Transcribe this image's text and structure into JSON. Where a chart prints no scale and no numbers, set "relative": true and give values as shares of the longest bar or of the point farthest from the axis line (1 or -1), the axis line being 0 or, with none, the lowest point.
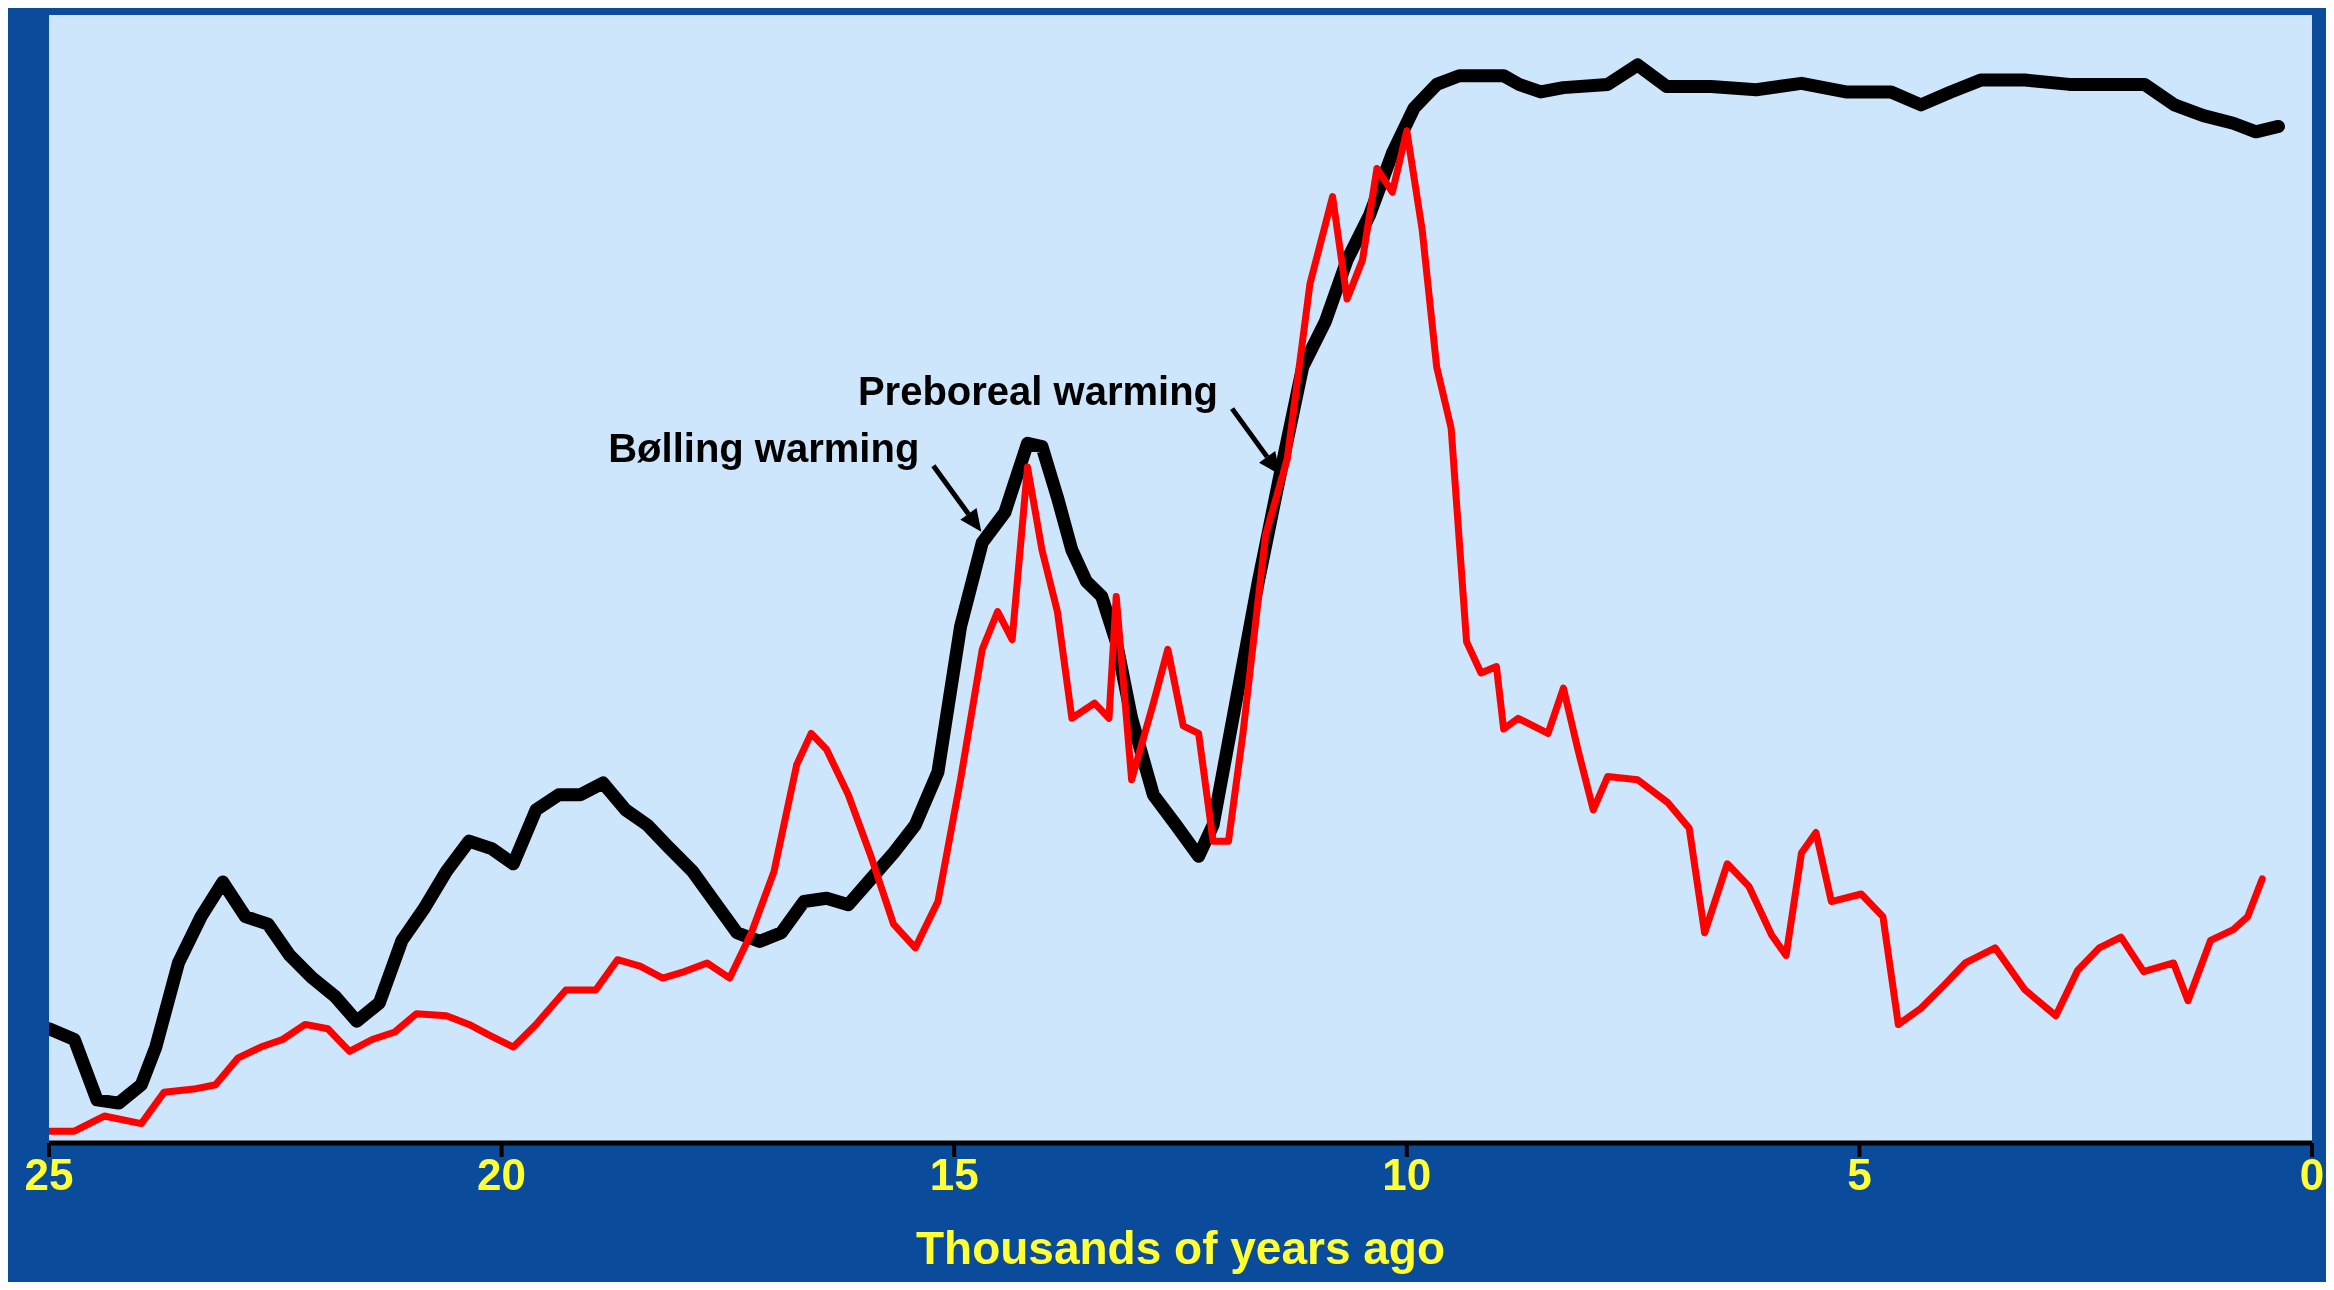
{
  "chart_data": {
    "type": "line",
    "xlabel": "Thousands of years ago",
    "relative": true,
    "xlim": [
      25,
      0
    ],
    "xticks": [
      25,
      20,
      15,
      10,
      5,
      0
    ],
    "grid": false,
    "marker": "none",
    "line_style": "solid",
    "annotations": [
      {
        "text": "Bølling warming",
        "x": 14.7,
        "y": 0.567
      },
      {
        "text": "Preboreal warming",
        "x": 11.4,
        "y": 0.62
      }
    ],
    "series": [
      {
        "color": "#000000",
        "x": [
          25.0,
          24.72,
          24.47,
          24.23,
          23.98,
          23.82,
          23.57,
          23.32,
          23.08,
          22.83,
          22.58,
          22.34,
          22.09,
          21.84,
          21.6,
          21.35,
          21.1,
          20.86,
          20.61,
          20.36,
          20.11,
          19.87,
          19.62,
          19.37,
          19.13,
          18.88,
          18.63,
          18.39,
          18.14,
          17.89,
          17.65,
          17.4,
          17.15,
          16.91,
          16.66,
          16.41,
          16.17,
          15.92,
          15.67,
          15.43,
          15.18,
          14.93,
          14.69,
          14.44,
          14.19,
          14.03,
          13.86,
          13.7,
          13.54,
          13.37,
          13.21,
          13.04,
          12.8,
          12.55,
          12.3,
          12.14,
          11.89,
          11.64,
          11.4,
          11.15,
          10.9,
          10.66,
          10.41,
          10.16,
          9.92,
          9.67,
          9.42,
          9.18,
          8.93,
          8.76,
          8.52,
          8.27,
          7.78,
          7.45,
          7.13,
          6.64,
          6.14,
          5.64,
          5.15,
          4.65,
          4.32,
          3.99,
          3.66,
          3.17,
          2.68,
          2.18,
          1.85,
          1.52,
          1.2,
          0.87,
          0.62,
          0.37
        ],
        "values": [
          0.106,
          0.096,
          0.04,
          0.037,
          0.054,
          0.089,
          0.167,
          0.21,
          0.242,
          0.21,
          0.203,
          0.174,
          0.153,
          0.136,
          0.113,
          0.13,
          0.188,
          0.217,
          0.252,
          0.28,
          0.273,
          0.259,
          0.309,
          0.323,
          0.323,
          0.334,
          0.309,
          0.295,
          0.273,
          0.252,
          0.224,
          0.195,
          0.187,
          0.195,
          0.224,
          0.227,
          0.221,
          0.245,
          0.269,
          0.295,
          0.344,
          0.479,
          0.557,
          0.585,
          0.649,
          0.646,
          0.599,
          0.55,
          0.521,
          0.507,
          0.465,
          0.394,
          0.323,
          0.295,
          0.266,
          0.295,
          0.408,
          0.521,
          0.62,
          0.72,
          0.762,
          0.819,
          0.861,
          0.918,
          0.96,
          0.982,
          0.99,
          0.99,
          0.99,
          0.982,
          0.975,
          0.979,
          0.982,
          1,
          0.98,
          0.98,
          0.977,
          0.983,
          0.975,
          0.975,
          0.963,
          0.975,
          0.986,
          0.986,
          0.982,
          0.982,
          0.982,
          0.963,
          0.953,
          0.946,
          0.938,
          0.943
        ]
      },
      {
        "color": "#ff0000",
        "x": [
          25.0,
          24.72,
          24.39,
          23.98,
          23.73,
          23.4,
          23.16,
          22.91,
          22.66,
          22.42,
          22.17,
          21.92,
          21.68,
          21.43,
          21.18,
          20.94,
          20.61,
          20.36,
          20.11,
          19.87,
          19.62,
          19.29,
          18.96,
          18.72,
          18.47,
          18.22,
          17.98,
          17.73,
          17.48,
          17.24,
          16.99,
          16.74,
          16.58,
          16.41,
          16.17,
          15.92,
          15.67,
          15.43,
          15.18,
          14.93,
          14.69,
          14.52,
          14.36,
          14.19,
          14.03,
          13.86,
          13.7,
          13.45,
          13.29,
          13.21,
          13.04,
          12.8,
          12.64,
          12.47,
          12.3,
          12.14,
          11.97,
          11.81,
          11.56,
          11.32,
          11.07,
          10.82,
          10.66,
          10.49,
          10.33,
          10.16,
          10.0,
          9.83,
          9.67,
          9.51,
          9.34,
          9.18,
          9.01,
          8.93,
          8.77,
          8.44,
          8.27,
          8.11,
          7.94,
          7.78,
          7.45,
          7.12,
          6.88,
          6.71,
          6.46,
          6.22,
          5.97,
          5.81,
          5.64,
          5.48,
          5.31,
          4.98,
          4.74,
          4.57,
          4.32,
          4.07,
          3.83,
          3.5,
          3.17,
          2.83,
          2.59,
          2.35,
          2.11,
          1.86,
          1.53,
          1.37,
          1.12,
          0.87,
          0.71,
          0.55
        ],
        "values": [
          0.011,
          0.011,
          0.025,
          0.018,
          0.047,
          0.05,
          0.054,
          0.079,
          0.089,
          0.096,
          0.11,
          0.106,
          0.085,
          0.096,
          0.103,
          0.12,
          0.118,
          0.11,
          0.099,
          0.089,
          0.11,
          0.142,
          0.142,
          0.17,
          0.164,
          0.153,
          0.159,
          0.167,
          0.153,
          0.195,
          0.252,
          0.351,
          0.38,
          0.365,
          0.323,
          0.266,
          0.203,
          0.181,
          0.224,
          0.337,
          0.458,
          0.493,
          0.467,
          0.627,
          0.55,
          0.493,
          0.394,
          0.408,
          0.394,
          0.507,
          0.337,
          0.408,
          0.458,
          0.387,
          0.38,
          0.28,
          0.28,
          0.38,
          0.564,
          0.635,
          0.797,
          0.878,
          0.783,
          0.819,
          0.904,
          0.882,
          0.939,
          0.847,
          0.72,
          0.663,
          0.465,
          0.436,
          0.442,
          0.384,
          0.394,
          0.38,
          0.422,
          0.365,
          0.309,
          0.34,
          0.337,
          0.316,
          0.292,
          0.195,
          0.259,
          0.238,
          0.193,
          0.174,
          0.269,
          0.288,
          0.224,
          0.231,
          0.21,
          0.11,
          0.125,
          0.146,
          0.167,
          0.181,
          0.142,
          0.118,
          0.16,
          0.181,
          0.191,
          0.159,
          0.167,
          0.132,
          0.188,
          0.198,
          0.21,
          0.245
        ]
      }
    ]
  }
}
